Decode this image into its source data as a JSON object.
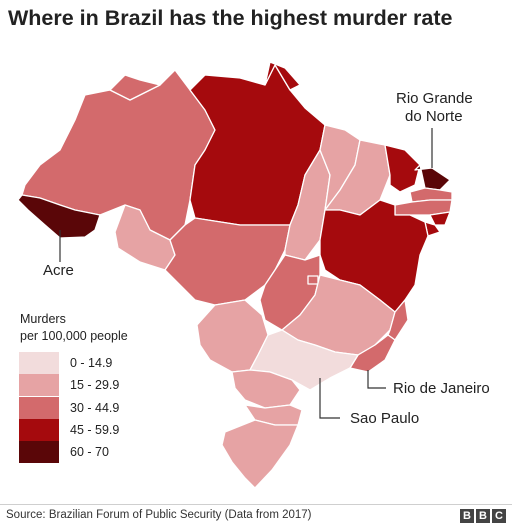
{
  "title": "Where in Brazil has the highest murder rate",
  "legend": {
    "title_line1": "Murders",
    "title_line2": "per 100,000 people",
    "items": [
      {
        "label": "0 - 14.9",
        "color": "#f2dcdc"
      },
      {
        "label": "15 - 29.9",
        "color": "#e6a3a4"
      },
      {
        "label": "30 - 44.9",
        "color": "#d36a6c"
      },
      {
        "label": "45 - 59.9",
        "color": "#a50a0d"
      },
      {
        "label": "60 - 70",
        "color": "#5a0608"
      }
    ]
  },
  "callouts": {
    "acre": "Acre",
    "rio_grande_line1": "Rio Grande",
    "rio_grande_line2": "do Norte",
    "rio_de_janeiro": "Rio de Janeiro",
    "sao_paulo": "Sao Paulo"
  },
  "source": "Source: Brazilian Forum of Public Security (Data from 2017)",
  "brand": [
    "B",
    "B",
    "C"
  ]
}
